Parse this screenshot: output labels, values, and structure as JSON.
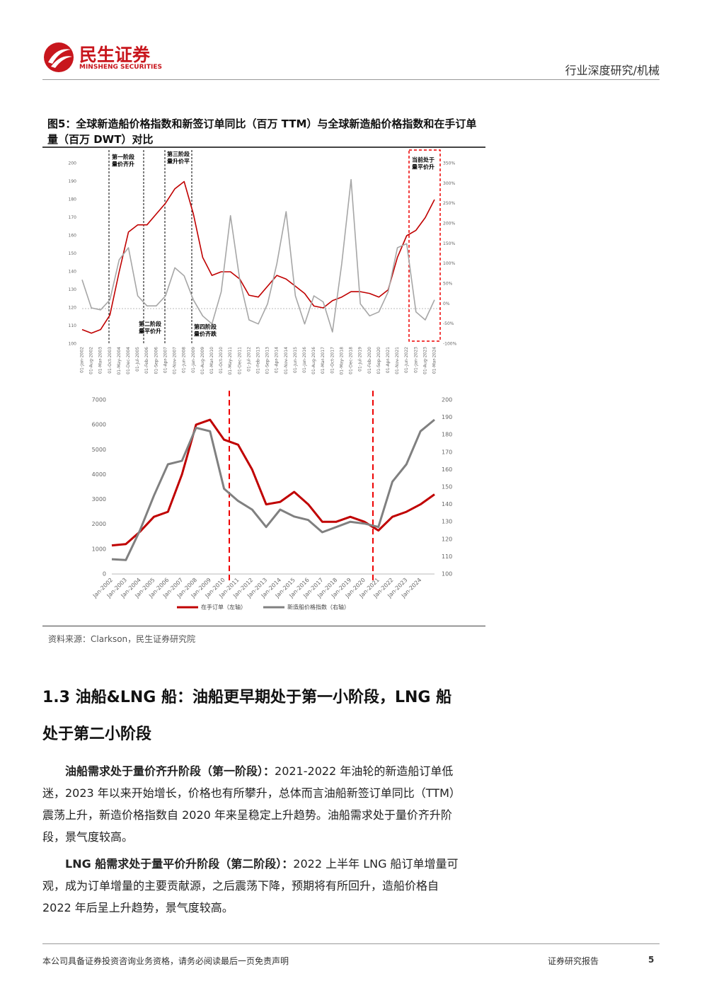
{
  "header": {
    "brand": "民生证券",
    "brand_en": "MINSHENG SECURITIES",
    "category": "行业深度研究/机械"
  },
  "figure_title": "图5：全球新造船价格指数和新签订单同比（百万 TTM）与全球新造船价格指数和在手订单量（百万 DWT）对比",
  "chart_data": [
    {
      "type": "line",
      "categories": [
        "01-Jan-2002",
        "01-Aug-2002",
        "01-Mar-2003",
        "01-Oct-2003",
        "01-May-2004",
        "01-Dec-2004",
        "01-Jul-2005",
        "01-Feb-2006",
        "01-Sep-2006",
        "01-Apr-2007",
        "01-Nov-2007",
        "01-Jun-2008",
        "01-Jan-2009",
        "01-Aug-2009",
        "01-Mar-2010",
        "01-Oct-2010",
        "01-May-2011",
        "01-Dec-2011",
        "01-Jul-2012",
        "01-Feb-2013",
        "01-Sep-2013",
        "01-Apr-2014",
        "01-Nov-2014",
        "01-Jun-2015",
        "01-Jan-2016",
        "01-Aug-2016",
        "01-Mar-2017",
        "01-Oct-2017",
        "01-May-2018",
        "01-Dec-2018",
        "01-Jul-2019",
        "01-Feb-2020",
        "01-Sep-2020",
        "01-Apr-2021",
        "01-Nov-2021",
        "01-Jun-2022",
        "01-Jan-2023",
        "01-Aug-2023",
        "01-Mar-2024"
      ],
      "series": [
        {
          "color": "#c00000",
          "values": [
            108,
            106,
            108,
            116,
            140,
            162,
            166,
            166,
            172,
            178,
            186,
            190,
            172,
            148,
            138,
            140,
            140,
            136,
            127,
            126,
            132,
            138,
            136,
            132,
            128,
            121,
            120,
            124,
            126,
            129,
            129,
            128,
            126,
            130,
            148,
            160,
            163,
            170,
            180
          ]
        },
        {
          "color": "#a6a6a6",
          "axis": "y2",
          "values": [
            60,
            -10,
            -15,
            10,
            110,
            140,
            20,
            -5,
            -5,
            20,
            90,
            70,
            10,
            -30,
            -50,
            30,
            220,
            60,
            -40,
            -50,
            0,
            100,
            230,
            20,
            -50,
            20,
            5,
            -70,
            100,
            310,
            0,
            -30,
            -20,
            30,
            140,
            150,
            -20,
            -40,
            10
          ]
        }
      ],
      "ylim": [
        100,
        200
      ],
      "yticks": [
        100,
        110,
        120,
        130,
        140,
        150,
        160,
        170,
        180,
        190,
        200
      ],
      "y2lim": [
        -100,
        350
      ],
      "y2ticks": [
        {
          "value": -100,
          "label": "-100%"
        },
        {
          "value": -50,
          "label": "-50%"
        },
        {
          "value": 0,
          "label": "0%"
        },
        {
          "value": 50,
          "label": "50%"
        },
        {
          "value": 100,
          "label": "100%"
        },
        {
          "value": 150,
          "label": "150%"
        },
        {
          "value": 200,
          "label": "200%"
        },
        {
          "value": 250,
          "label": "250%"
        },
        {
          "value": 300,
          "label": "300%"
        },
        {
          "value": 350,
          "label": "350%"
        }
      ],
      "annotations": [
        [
          "第一阶段",
          "量价齐升"
        ],
        [
          "第二阶段",
          "量平价升"
        ],
        [
          "第三阶段",
          "量升价平"
        ],
        [
          "第四阶段",
          "量价齐跌"
        ],
        [
          "当前处于",
          "量平价升"
        ]
      ]
    },
    {
      "type": "line",
      "categories": [
        "Jan-2002",
        "Jan-2003",
        "Jan-2004",
        "Jan-2005",
        "Jan-2006",
        "Jan-2007",
        "Jan-2008",
        "Jan-2009",
        "Jan-2010",
        "Jan-2011",
        "Jan-2012",
        "Jan-2013",
        "Jan-2014",
        "Jan-2015",
        "Jan-2016",
        "Jan-2017",
        "Jan-2018",
        "Jan-2019",
        "Jan-2020",
        "Jan-2021",
        "Jan-2022",
        "Jan-2023",
        "Jan-2024",
        null
      ],
      "series": [
        {
          "name": "在手订单（左轴）",
          "color": "#c00000",
          "values": [
            1150,
            1200,
            1700,
            2300,
            2500,
            4000,
            6000,
            6200,
            5400,
            5200,
            4200,
            2800,
            2900,
            3300,
            2800,
            2100,
            2100,
            2300,
            2100,
            1750,
            2300,
            2500,
            2800,
            3200
          ]
        },
        {
          "name": "新造船价格指数（右轴）",
          "color": "#808080",
          "axis": "y2",
          "values": [
            108.5,
            108,
            125,
            145,
            163,
            165,
            184,
            182,
            149,
            142,
            137,
            127,
            137,
            133,
            131,
            124,
            127,
            130,
            129,
            127,
            153,
            163,
            182,
            188.6
          ]
        }
      ],
      "ylim": [
        0,
        7000
      ],
      "yticks": [
        0,
        1000,
        2000,
        3000,
        4000,
        5000,
        6000,
        7000
      ],
      "y2lim": [
        100,
        200
      ],
      "y2ticks": [
        100,
        110,
        120,
        130,
        140,
        150,
        160,
        170,
        180,
        190,
        200
      ]
    }
  ],
  "source": "资料来源：Clarkson，民生证券研究院",
  "section_title": "1.3 油船&LNG 船：油船更早期处于第一小阶段，LNG 船处于第二小阶段",
  "paragraphs": [
    {
      "lead": "油船需求处于量价齐升阶段（第一阶段）：",
      "text": "2021-2022 年油轮的新造船订单低迷，2023 年以来开始增长，价格也有所攀升，总体而言油船新签订单同比（TTM）震荡上升，新造价格指数自 2020 年来呈稳定上升趋势。油船需求处于量价齐升阶段，景气度较高。"
    },
    {
      "lead": "LNG 船需求处于量平价升阶段（第二阶段）：",
      "text": "2022 上半年 LNG 船订单增量可观，成为订单增量的主要贡献源，之后震荡下降，预期将有所回升，造船价格自 2022 年后呈上升趋势，景气度较高。"
    }
  ],
  "footer": {
    "disclaimer": "本公司具备证券投资咨询业务资格，请务必阅读最后一页免责声明",
    "label": "证券研究报告",
    "page": 5
  }
}
